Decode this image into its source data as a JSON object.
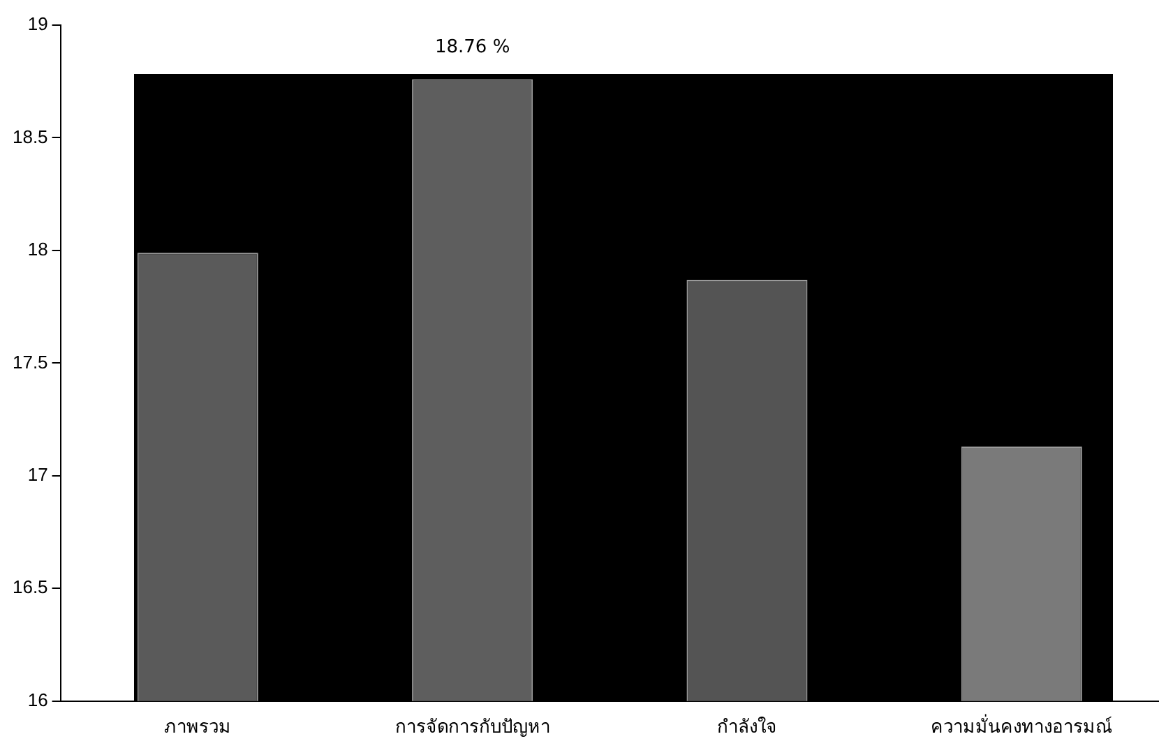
{
  "chart_data": {
    "type": "bar",
    "categories": [
      "ภาพรวม",
      "การจัดการกับปัญหา",
      "กำลังใจ",
      "ความมั่นคงทางอารมณ์"
    ],
    "values": [
      17.99,
      18.76,
      17.87,
      17.13
    ],
    "colors": [
      "#5a5a5a",
      "#5e5e5e",
      "#545454",
      "#7a7a7a"
    ],
    "value_labels": [
      null,
      "18.76 %",
      null,
      null
    ],
    "ylim": [
      16,
      19
    ],
    "yticks": [
      16,
      16.5,
      17,
      17.5,
      18,
      18.5,
      19
    ],
    "grid": false,
    "legend": false
  }
}
